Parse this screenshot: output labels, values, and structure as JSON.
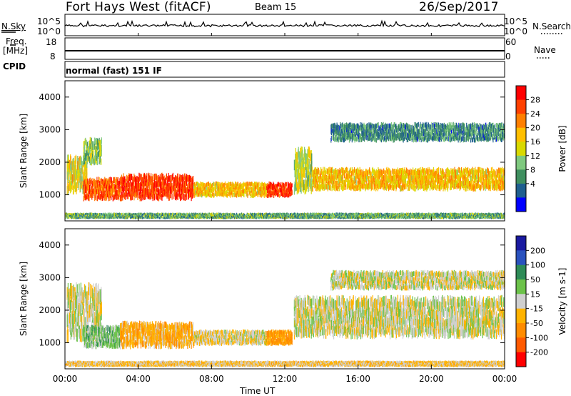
{
  "header": {
    "station": "Fort Hays West (fitACF)",
    "beam": "Beam 15",
    "date": "26/Sep/2017"
  },
  "status_panels": {
    "nsky_label": "N.Sky",
    "nsearch_label": "N.Search",
    "noise_ticks": [
      "10^5",
      "10^0"
    ],
    "noise_ticks_right": [
      "10^5",
      "10^0"
    ],
    "freq_label_line1": "Freq.",
    "freq_label_line2": "[MHz]",
    "freq_ticks": [
      "18",
      "8"
    ],
    "nave_label": "Nave",
    "nave_ticks": [
      "60",
      "0"
    ],
    "cpid_label": "CPID",
    "cpid_value": "normal (fast) 151 IF"
  },
  "time_axis": {
    "label": "Time UT",
    "ticks": [
      "00:00",
      "04:00",
      "08:00",
      "12:00",
      "16:00",
      "20:00",
      "00:00"
    ],
    "hours": [
      0,
      4,
      8,
      12,
      16,
      20,
      24
    ]
  },
  "power_colorbar": {
    "label": "Power [dB]",
    "ticks": [
      "28",
      "24",
      "20",
      "16",
      "12",
      "8",
      "4"
    ],
    "colors": [
      "#ff0000",
      "#ff4000",
      "#ff7f00",
      "#ffbf00",
      "#d9d900",
      "#7fc97f",
      "#3f8f5f",
      "#1f5f8f",
      "#0000ff"
    ]
  },
  "velocity_colorbar": {
    "label": "Velocity [m s-1]",
    "ticks": [
      "200",
      "100",
      "50",
      "15",
      "-15",
      "-50",
      "-100",
      "-200"
    ],
    "colors": [
      "#1a1aa0",
      "#2a52be",
      "#2e8b57",
      "#6cc24a",
      "#cfcfcf",
      "#ffb300",
      "#ff8c00",
      "#ff5a00",
      "#ff0000"
    ]
  },
  "chart_data": {
    "type": "heatmap",
    "title": "Fort Hays West (fitACF) Beam 15 26/Sep/2017",
    "xlabel": "Time UT",
    "ylabel": "Slant Range [km]",
    "xlim_hours": [
      0,
      24
    ],
    "ylim_km": [
      200,
      4500
    ],
    "y_ticks": [
      1000,
      2000,
      3000,
      4000
    ],
    "panels": [
      {
        "name": "Power",
        "unit": "dB",
        "clim": [
          0,
          30
        ],
        "echo_regions": [
          {
            "t_start": 0.1,
            "t_end": 1.2,
            "r_min": 1000,
            "r_max": 2000,
            "typical": 16
          },
          {
            "t_start": 1.0,
            "t_end": 2.0,
            "r_min": 1900,
            "r_max": 2600,
            "typical": 12
          },
          {
            "t_start": 1.0,
            "t_end": 3.0,
            "r_min": 800,
            "r_max": 1400,
            "typical": 24
          },
          {
            "t_start": 3.0,
            "t_end": 7.0,
            "r_min": 800,
            "r_max": 1500,
            "typical": 26
          },
          {
            "t_start": 7.0,
            "t_end": 11.0,
            "r_min": 900,
            "r_max": 1300,
            "typical": 18
          },
          {
            "t_start": 11.0,
            "t_end": 12.4,
            "r_min": 900,
            "r_max": 1300,
            "typical": 26
          },
          {
            "t_start": 12.5,
            "t_end": 13.5,
            "r_min": 1000,
            "r_max": 2200,
            "typical": 14
          },
          {
            "t_start": 13.5,
            "t_end": 24.0,
            "r_min": 1100,
            "r_max": 1700,
            "typical": 18
          },
          {
            "t_start": 14.5,
            "t_end": 24.0,
            "r_min": 2600,
            "r_max": 3100,
            "typical": 8
          },
          {
            "t_start": 0.0,
            "t_end": 24.0,
            "r_min": 250,
            "r_max": 400,
            "typical": 10
          }
        ]
      },
      {
        "name": "Velocity",
        "unit": "m s-1",
        "clim": [
          -200,
          200
        ],
        "echo_regions": [
          {
            "t_start": 0.1,
            "t_end": 2.0,
            "r_min": 1000,
            "r_max": 2500,
            "typical": 0
          },
          {
            "t_start": 1.0,
            "t_end": 3.0,
            "r_min": 800,
            "r_max": 1400,
            "typical": 30
          },
          {
            "t_start": 3.0,
            "t_end": 7.0,
            "r_min": 800,
            "r_max": 1500,
            "typical": -40
          },
          {
            "t_start": 7.0,
            "t_end": 11.0,
            "r_min": 900,
            "r_max": 1300,
            "typical": -10
          },
          {
            "t_start": 11.0,
            "t_end": 12.4,
            "r_min": 900,
            "r_max": 1300,
            "typical": -60
          },
          {
            "t_start": 12.5,
            "t_end": 24.0,
            "r_min": 1100,
            "r_max": 2200,
            "typical": 0
          },
          {
            "t_start": 14.5,
            "t_end": 24.0,
            "r_min": 2600,
            "r_max": 3100,
            "typical": 0
          },
          {
            "t_start": 0.0,
            "t_end": 24.0,
            "r_min": 250,
            "r_max": 400,
            "typical": -20
          }
        ]
      }
    ],
    "grid": false,
    "legend": "right colorbars"
  }
}
